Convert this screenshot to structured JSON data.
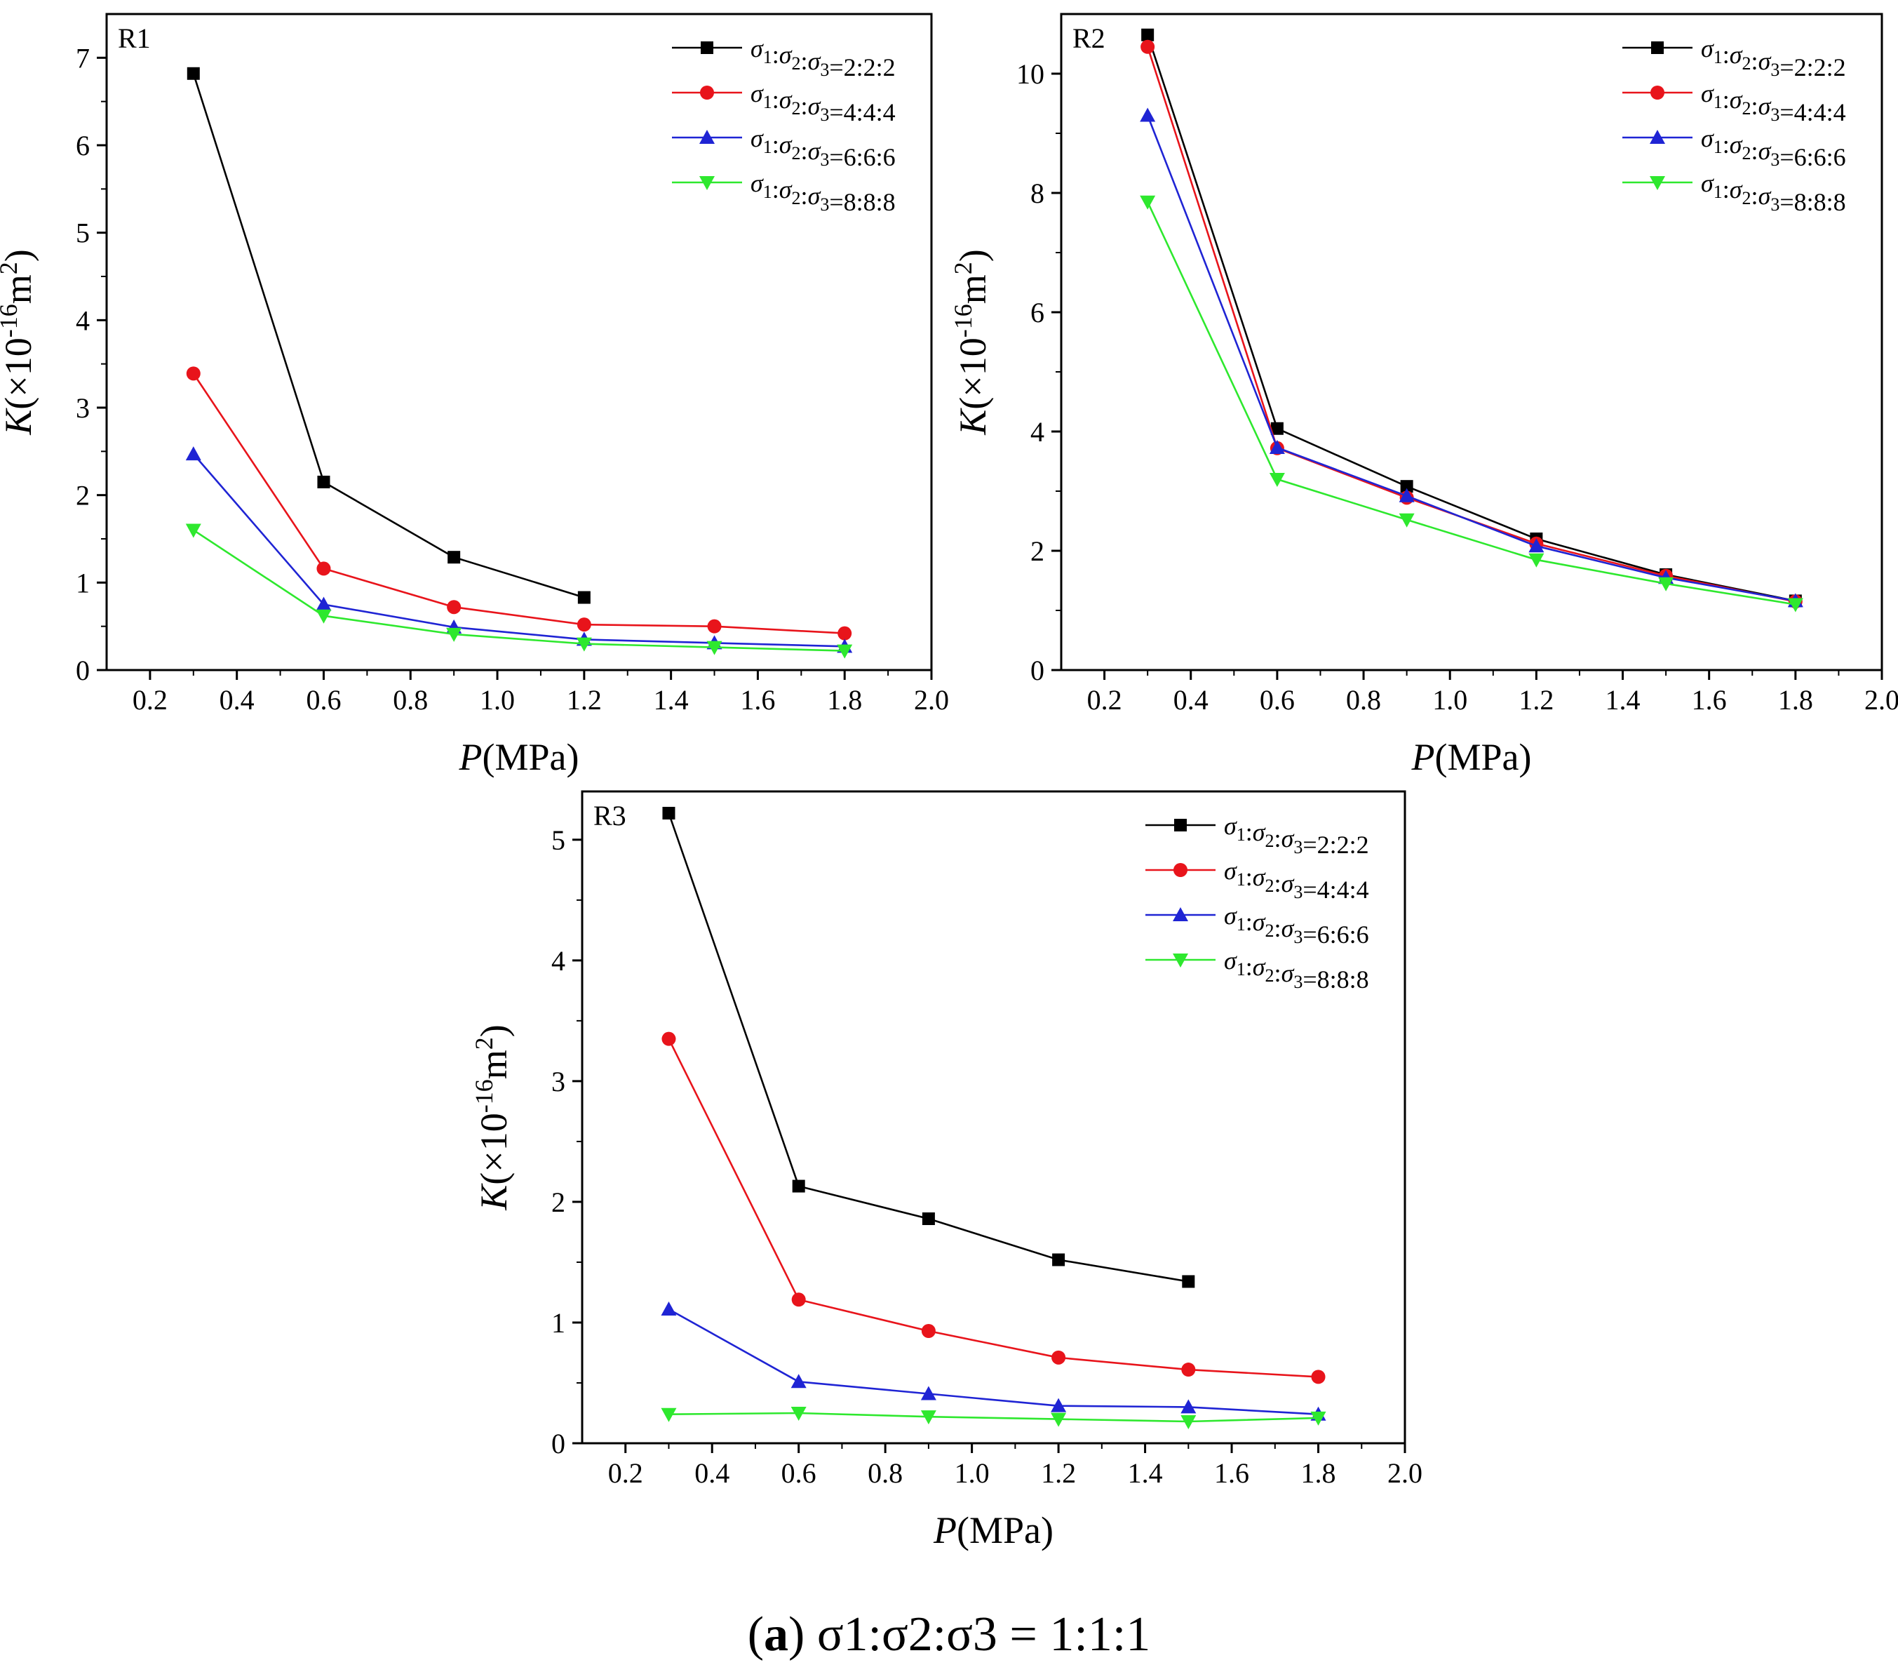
{
  "caption": {
    "label": "a",
    "text": "σ1:σ2:σ3 = 1:1:1"
  },
  "legend_labels": [
    "2:2:2",
    "4:4:4",
    "6:6:6",
    "8:8:8"
  ],
  "series_colors": [
    "#000000",
    "#e8141b",
    "#1f24d4",
    "#2ee82e"
  ],
  "chart_data": [
    {
      "type": "line",
      "panel": "R1",
      "xlabel": "P(MPa)",
      "ylabel": "K(×10-16m2)",
      "xlim": [
        0.1,
        2.0
      ],
      "ylim": [
        0,
        7.5
      ],
      "xticks": [
        0.2,
        0.4,
        0.6,
        0.8,
        1.0,
        1.2,
        1.4,
        1.6,
        1.8,
        2.0
      ],
      "yticks": [
        0,
        1,
        2,
        3,
        4,
        5,
        6,
        7
      ],
      "series": [
        {
          "name": "σ1:σ2:σ3=2:2:2",
          "marker": "square",
          "x": [
            0.3,
            0.6,
            0.9,
            1.2
          ],
          "y": [
            6.82,
            2.15,
            1.29,
            0.83
          ]
        },
        {
          "name": "σ1:σ2:σ3=4:4:4",
          "marker": "circle",
          "x": [
            0.3,
            0.6,
            0.9,
            1.2,
            1.5,
            1.8
          ],
          "y": [
            3.39,
            1.16,
            0.72,
            0.52,
            0.5,
            0.42
          ]
        },
        {
          "name": "σ1:σ2:σ3=6:6:6",
          "marker": "triangle-up",
          "x": [
            0.3,
            0.6,
            0.9,
            1.2,
            1.5,
            1.8
          ],
          "y": [
            2.47,
            0.75,
            0.49,
            0.35,
            0.31,
            0.27
          ]
        },
        {
          "name": "σ1:σ2:σ3=8:8:8",
          "marker": "triangle-down",
          "x": [
            0.3,
            0.6,
            0.9,
            1.2,
            1.5,
            1.8
          ],
          "y": [
            1.6,
            0.62,
            0.41,
            0.3,
            0.26,
            0.22
          ]
        }
      ]
    },
    {
      "type": "line",
      "panel": "R2",
      "xlabel": "P(MPa)",
      "ylabel": "K(×10-16m2)",
      "xlim": [
        0.1,
        2.0
      ],
      "ylim": [
        0,
        11
      ],
      "xticks": [
        0.2,
        0.4,
        0.6,
        0.8,
        1.0,
        1.2,
        1.4,
        1.6,
        1.8,
        2.0
      ],
      "yticks": [
        0,
        2,
        4,
        6,
        8,
        10
      ],
      "series": [
        {
          "name": "σ1:σ2:σ3=2:2:2",
          "marker": "square",
          "x": [
            0.3,
            0.6,
            0.9,
            1.2,
            1.5,
            1.8
          ],
          "y": [
            10.65,
            4.05,
            3.08,
            2.2,
            1.6,
            1.16
          ]
        },
        {
          "name": "σ1:σ2:σ3=4:4:4",
          "marker": "circle",
          "x": [
            0.3,
            0.6,
            0.9,
            1.2,
            1.5,
            1.8
          ],
          "y": [
            10.45,
            3.72,
            2.89,
            2.12,
            1.58,
            1.15
          ]
        },
        {
          "name": "σ1:σ2:σ3=6:6:6",
          "marker": "triangle-up",
          "x": [
            0.3,
            0.6,
            0.9,
            1.2,
            1.5,
            1.8
          ],
          "y": [
            9.3,
            3.73,
            2.92,
            2.08,
            1.55,
            1.16
          ]
        },
        {
          "name": "σ1:σ2:σ3=8:8:8",
          "marker": "triangle-down",
          "x": [
            0.3,
            0.6,
            0.9,
            1.2,
            1.5,
            1.8
          ],
          "y": [
            7.85,
            3.2,
            2.52,
            1.85,
            1.45,
            1.1
          ]
        }
      ]
    },
    {
      "type": "line",
      "panel": "R3",
      "xlabel": "P(MPa)",
      "ylabel": "K(×10-16m2)",
      "xlim": [
        0.1,
        2.0
      ],
      "ylim": [
        0,
        5.4
      ],
      "xticks": [
        0.2,
        0.4,
        0.6,
        0.8,
        1.0,
        1.2,
        1.4,
        1.6,
        1.8,
        2.0
      ],
      "yticks": [
        0,
        1,
        2,
        3,
        4,
        5
      ],
      "series": [
        {
          "name": "σ1:σ2:σ3=2:2:2",
          "marker": "square",
          "x": [
            0.3,
            0.6,
            0.9,
            1.2,
            1.5
          ],
          "y": [
            5.22,
            2.13,
            1.86,
            1.52,
            1.34
          ]
        },
        {
          "name": "σ1:σ2:σ3=4:4:4",
          "marker": "circle",
          "x": [
            0.3,
            0.6,
            0.9,
            1.2,
            1.5,
            1.8
          ],
          "y": [
            3.35,
            1.19,
            0.93,
            0.71,
            0.61,
            0.55
          ]
        },
        {
          "name": "σ1:σ2:σ3=6:6:6",
          "marker": "triangle-up",
          "x": [
            0.3,
            0.6,
            0.9,
            1.2,
            1.5,
            1.8
          ],
          "y": [
            1.11,
            0.51,
            0.41,
            0.31,
            0.3,
            0.24
          ]
        },
        {
          "name": "σ1:σ2:σ3=8:8:8",
          "marker": "triangle-down",
          "x": [
            0.3,
            0.6,
            0.9,
            1.2,
            1.5,
            1.8
          ],
          "y": [
            0.24,
            0.25,
            0.22,
            0.2,
            0.18,
            0.21
          ]
        }
      ]
    }
  ]
}
